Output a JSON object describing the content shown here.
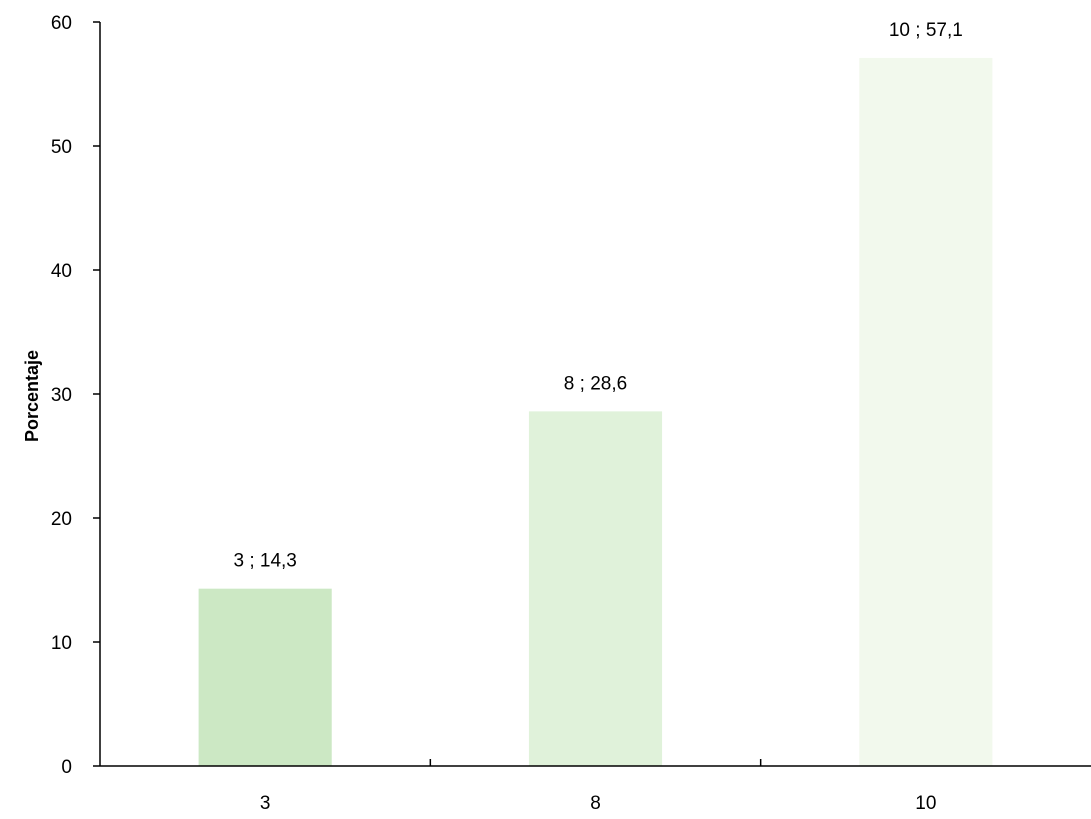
{
  "chart_data": {
    "type": "bar",
    "title": "",
    "xlabel": "",
    "ylabel": "Porcentaje",
    "categories": [
      "3",
      "8",
      "10"
    ],
    "values": [
      14.3,
      28.6,
      57.1
    ],
    "data_labels": [
      "3 ; 14,3",
      "8 ; 28,6",
      "10 ; 57,1"
    ],
    "y_ticks": [
      "0",
      "10",
      "20",
      "30",
      "40",
      "50",
      "60"
    ],
    "ylim": [
      0,
      60
    ],
    "grid": false,
    "legend": "none",
    "bar_colors": [
      "#cce8c4",
      "#e0f2da",
      "#f2f9ed"
    ],
    "axis_color": "#000000"
  }
}
